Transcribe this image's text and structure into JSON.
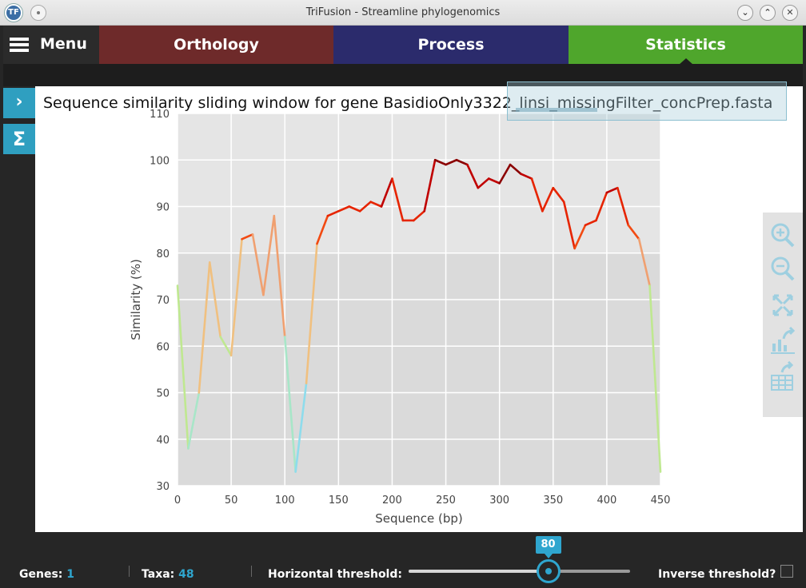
{
  "window": {
    "title": "TriFusion - Streamline phylogenomics",
    "logo_letter": "TF",
    "controls": [
      "minimize",
      "maximize",
      "close"
    ]
  },
  "nav": {
    "menu_label": "Menu",
    "tabs": [
      {
        "label": "Orthology",
        "color": "#6e2a2a"
      },
      {
        "label": "Process",
        "color": "#2b2b6c"
      },
      {
        "label": "Statistics",
        "color": "#4fa62c",
        "active": true
      }
    ]
  },
  "side_buttons": [
    {
      "icon": "chevron-right-icon",
      "glyph": "›"
    },
    {
      "icon": "sigma-icon",
      "glyph": "Σ"
    }
  ],
  "plot": {
    "title": "Sequence similarity sliding window for gene BasidioOnly3322_linsi_missingFilter_concPrep.fasta"
  },
  "chart_data": {
    "type": "line",
    "title": "Sequence similarity sliding window for gene BasidioOnly3322_linsi_missingFilter_concPrep.fasta",
    "xlabel": "Sequence (bp)",
    "ylabel": "Similarity (%)",
    "xlim": [
      0,
      450
    ],
    "ylim": [
      30,
      110
    ],
    "xticks": [
      0,
      50,
      100,
      150,
      200,
      250,
      300,
      350,
      400,
      450
    ],
    "yticks": [
      30,
      40,
      50,
      60,
      70,
      80,
      90,
      100,
      110
    ],
    "grid": true,
    "threshold": 80,
    "color_scale": "similarity-gradient",
    "x": [
      0,
      10,
      20,
      30,
      40,
      50,
      60,
      70,
      80,
      90,
      100,
      110,
      120,
      130,
      140,
      150,
      160,
      170,
      180,
      190,
      200,
      210,
      220,
      230,
      240,
      250,
      260,
      270,
      280,
      290,
      300,
      310,
      320,
      330,
      340,
      350,
      360,
      370,
      380,
      390,
      400,
      410,
      420,
      430,
      440,
      450
    ],
    "y": [
      73,
      38,
      50,
      78,
      62,
      58,
      83,
      84,
      71,
      88,
      62,
      33,
      52,
      82,
      88,
      89,
      90,
      89,
      91,
      90,
      96,
      87,
      87,
      89,
      100,
      99,
      100,
      99,
      94,
      96,
      95,
      99,
      97,
      96,
      89,
      94,
      91,
      81,
      86,
      87,
      93,
      94,
      86,
      83,
      73,
      33
    ]
  },
  "toolbar": {
    "items": [
      "zoom-in-icon",
      "zoom-out-icon",
      "fit-to-screen-icon",
      "export-chart-icon",
      "export-table-icon"
    ]
  },
  "footer": {
    "genes_label": "Genes:",
    "genes_value": "1",
    "taxa_label": "Taxa:",
    "taxa_value": "48",
    "threshold_label": "Horizontal threshold:",
    "threshold_value": "80",
    "threshold_fraction": 0.63,
    "inverse_label": "Inverse threshold?",
    "inverse_checked": false,
    "accent_color": "#2fa6cf"
  }
}
